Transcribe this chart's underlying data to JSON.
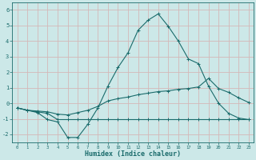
{
  "xlabel": "Humidex (Indice chaleur)",
  "bg_color": "#cce8e8",
  "grid_color": "#c0d8d8",
  "line_color": "#1a6b6b",
  "xlim": [
    -0.5,
    23.5
  ],
  "ylim": [
    -2.5,
    6.5
  ],
  "xticks": [
    0,
    1,
    2,
    3,
    4,
    5,
    6,
    7,
    8,
    9,
    10,
    11,
    12,
    13,
    14,
    15,
    16,
    17,
    18,
    19,
    20,
    21,
    22,
    23
  ],
  "yticks": [
    -2,
    -1,
    0,
    1,
    2,
    3,
    4,
    5,
    6
  ],
  "line1_x": [
    0,
    1,
    2,
    3,
    4,
    5,
    6,
    7,
    8,
    9,
    10,
    11,
    12,
    13,
    14,
    15,
    16,
    17,
    18,
    19,
    20,
    21,
    22,
    23
  ],
  "line1_y": [
    -0.3,
    -0.45,
    -0.6,
    -1.05,
    -1.2,
    -2.2,
    -2.2,
    -1.35,
    -0.3,
    1.1,
    2.3,
    3.25,
    4.7,
    5.35,
    5.75,
    4.95,
    4.0,
    2.85,
    2.55,
    1.1,
    0.0,
    -0.65,
    -0.95,
    -1.05
  ],
  "line2_x": [
    0,
    1,
    2,
    3,
    4,
    5,
    6,
    7,
    8,
    9,
    10,
    11,
    12,
    13,
    14,
    15,
    16,
    17,
    18,
    19,
    20,
    21,
    22,
    23
  ],
  "line2_y": [
    -0.3,
    -0.45,
    -0.55,
    -0.65,
    -1.05,
    -1.05,
    -1.05,
    -1.05,
    -1.05,
    -1.05,
    -1.05,
    -1.05,
    -1.05,
    -1.05,
    -1.05,
    -1.05,
    -1.05,
    -1.05,
    -1.05,
    -1.05,
    -1.05,
    -1.05,
    -1.05,
    -1.05
  ],
  "line3_x": [
    0,
    1,
    2,
    3,
    4,
    5,
    6,
    7,
    8,
    9,
    10,
    11,
    12,
    13,
    14,
    15,
    16,
    17,
    18,
    19,
    20,
    21,
    22,
    23
  ],
  "line3_y": [
    -0.3,
    -0.45,
    -0.5,
    -0.55,
    -0.7,
    -0.75,
    -0.6,
    -0.45,
    -0.2,
    0.15,
    0.3,
    0.4,
    0.55,
    0.65,
    0.75,
    0.8,
    0.9,
    0.95,
    1.05,
    1.6,
    0.95,
    0.7,
    0.35,
    0.05
  ]
}
